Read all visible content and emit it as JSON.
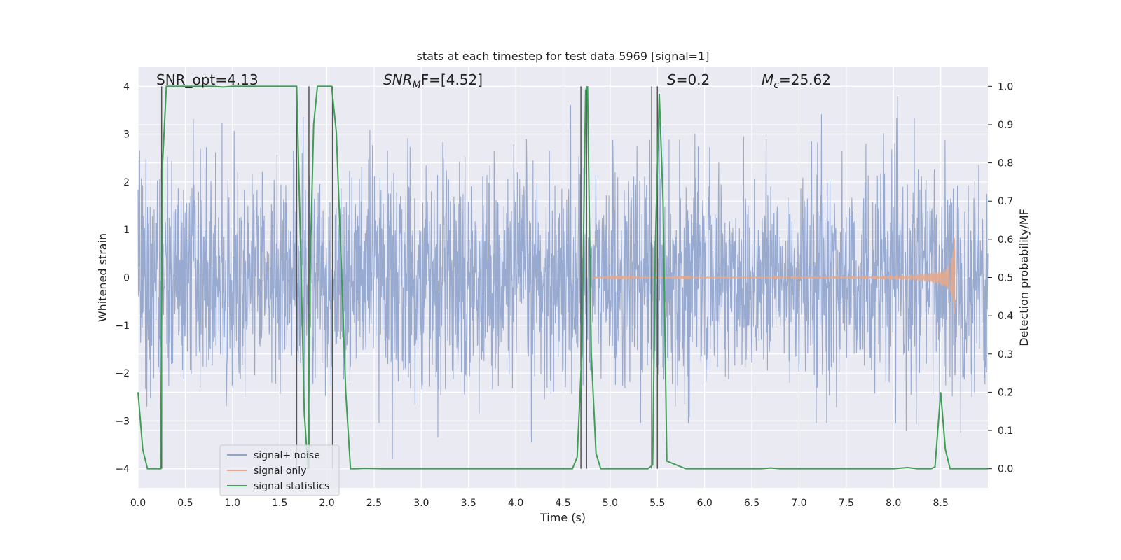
{
  "chart_data": {
    "type": "line",
    "title": "stats at each timestep for test data 5969 [signal=1]",
    "xlabel": "Time (s)",
    "ylabel_left": "Whitened strain",
    "ylabel_right": "Detection probability/MF",
    "xlim": [
      0.0,
      9.0
    ],
    "ylim_left": [
      -4.4,
      4.4
    ],
    "ylim_right": [
      -0.05,
      1.05
    ],
    "x_ticks": [
      "0.0",
      "0.5",
      "1.0",
      "1.5",
      "2.0",
      "2.5",
      "3.0",
      "3.5",
      "4.0",
      "4.5",
      "5.0",
      "5.5",
      "6.0",
      "6.5",
      "7.0",
      "7.5",
      "8.0",
      "8.5"
    ],
    "y_ticks_left": [
      "−4",
      "−3",
      "−2",
      "−1",
      "0",
      "1",
      "2",
      "3",
      "4"
    ],
    "y_ticks_right": [
      "0.0",
      "0.1",
      "0.2",
      "0.3",
      "0.4",
      "0.5",
      "0.6",
      "0.7",
      "0.8",
      "0.9",
      "1.0"
    ],
    "grid": true,
    "legend_position": "lower-left",
    "colors": {
      "background": "#eaeaf2",
      "grid": "#ffffff",
      "noise": "#8fa3cc",
      "signal": "#e3a88d",
      "statistics": "#3f9e55",
      "marker_lines": "#555555"
    },
    "annotations": {
      "snr_opt": "SNR_opt=4.13",
      "snr_mf_prefix": "SNR",
      "snr_mf_sub": "M",
      "snr_mf_suffix": "F=[4.52]",
      "s_prefix": "S",
      "s_suffix": "=0.2",
      "mc_prefix": "M",
      "mc_sub": "c",
      "mc_suffix": "=25.62"
    },
    "series": [
      {
        "name": "signal+ noise",
        "style": "dense noise trace, roughly symmetric around 0, envelope about ±2.5 with spikes to about ±3.8",
        "x_range": [
          0.0,
          9.0
        ]
      },
      {
        "name": "signal only",
        "style": "chirp waveform growing in amplitude",
        "x_range": [
          4.8,
          8.65
        ],
        "peak_amplitude": 1.05
      },
      {
        "name": "signal statistics",
        "axis": "right",
        "x": [
          0.0,
          0.05,
          0.1,
          0.15,
          0.2,
          0.24,
          0.26,
          0.3,
          0.4,
          0.6,
          0.8,
          0.9,
          1.0,
          1.2,
          1.4,
          1.6,
          1.68,
          1.72,
          1.76,
          1.8,
          1.82,
          1.86,
          1.9,
          2.0,
          2.05,
          2.1,
          2.15,
          2.2,
          2.25,
          2.3,
          2.4,
          2.6,
          3.0,
          3.5,
          4.0,
          4.4,
          4.6,
          4.65,
          4.7,
          4.74,
          4.76,
          4.8,
          4.85,
          4.9,
          5.0,
          5.2,
          5.4,
          5.45,
          5.48,
          5.52,
          5.56,
          5.6,
          5.8,
          6.0,
          6.3,
          6.6,
          6.7,
          6.8,
          7.0,
          7.5,
          8.0,
          8.15,
          8.25,
          8.4,
          8.44,
          8.5,
          8.55,
          8.6,
          8.7,
          8.8,
          9.0
        ],
        "y": [
          0.2,
          0.05,
          0.0,
          0.0,
          0.0,
          0.0,
          0.8,
          1.0,
          1.0,
          1.0,
          1.0,
          0.998,
          1.0,
          1.0,
          1.0,
          1.0,
          1.0,
          0.6,
          0.15,
          0.0,
          0.5,
          0.9,
          1.0,
          1.0,
          1.0,
          0.88,
          0.55,
          0.2,
          0.0,
          0.0,
          0.001,
          0.0,
          0.0,
          0.0,
          0.0,
          0.0,
          0.0,
          0.03,
          0.3,
          0.99,
          1.0,
          0.3,
          0.04,
          0.0,
          0.0,
          0.0,
          0.0,
          0.01,
          0.6,
          0.98,
          0.7,
          0.02,
          0.0,
          0.0,
          0.0,
          0.0,
          0.002,
          0.0,
          0.0,
          0.0,
          0.0,
          0.003,
          0.0,
          0.0,
          0.005,
          0.2,
          0.05,
          0.0,
          0.0,
          0.0,
          0.0
        ]
      }
    ],
    "marker_lines_x": [
      0.25,
      1.68,
      1.81,
      2.06,
      4.69,
      4.75,
      5.44,
      5.5
    ]
  }
}
